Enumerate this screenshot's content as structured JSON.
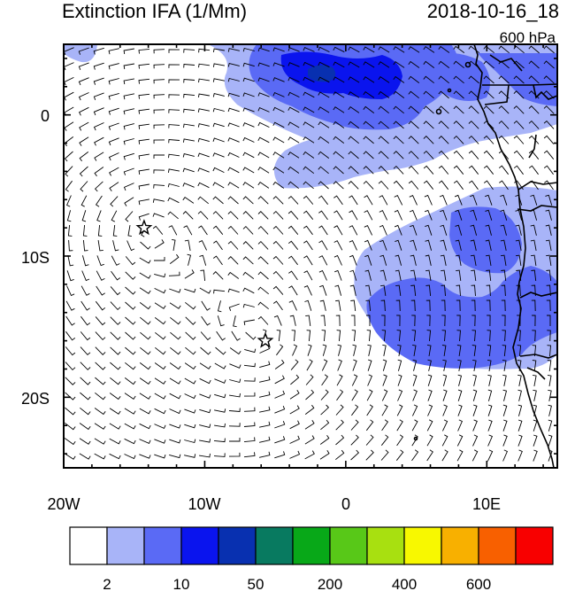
{
  "header": {
    "title": "Extinction IFA (1/Mm)",
    "datetime": "2018-10-16_18",
    "level": "600 hPa"
  },
  "map": {
    "lon_range": [
      -20,
      15
    ],
    "lat_range": [
      -25,
      5
    ],
    "x_ticks": [
      {
        "lon": -20,
        "label": "20W"
      },
      {
        "lon": -10,
        "label": "10W"
      },
      {
        "lon": 0,
        "label": "0"
      },
      {
        "lon": 10,
        "label": "10E"
      }
    ],
    "y_ticks": [
      {
        "lat": 0,
        "label": "0"
      },
      {
        "lat": -10,
        "label": "10S"
      },
      {
        "lat": -20,
        "label": "20S"
      }
    ],
    "markers": [
      {
        "type": "star",
        "lon": -14.3,
        "lat": -8.0
      },
      {
        "type": "star",
        "lon": -5.7,
        "lat": -16.0
      }
    ],
    "wind_barbs": true
  },
  "colorbar": {
    "colors": [
      "#ffffff",
      "#a8b4f8",
      "#5a6af5",
      "#0a14ee",
      "#0830b0",
      "#087a60",
      "#08a818",
      "#58c818",
      "#a8e010",
      "#f8f800",
      "#f8b000",
      "#f86000",
      "#f80000"
    ],
    "labels": [
      {
        "after_box": 1,
        "text": "2"
      },
      {
        "after_box": 2,
        "text": "10"
      },
      {
        "after_box": 4,
        "text": "50"
      },
      {
        "after_box": 6,
        "text": "200"
      },
      {
        "after_box": 8,
        "text": "400"
      },
      {
        "after_box": 10,
        "text": "600"
      }
    ]
  }
}
